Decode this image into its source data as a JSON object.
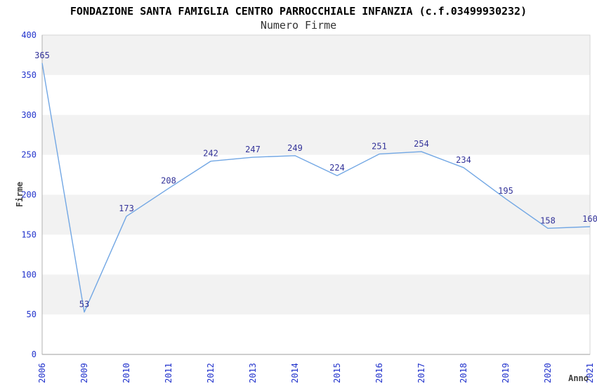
{
  "chart_data": {
    "type": "line",
    "title": "FONDAZIONE SANTA FAMIGLIA CENTRO PARROCCHIALE INFANZIA (c.f.03499930232)",
    "subtitle": "Numero Firme",
    "xlabel": "Anno",
    "ylabel": "Firme",
    "categories": [
      "2006",
      "2009",
      "2010",
      "2011",
      "2012",
      "2013",
      "2014",
      "2015",
      "2016",
      "2017",
      "2018",
      "2019",
      "2020",
      "2021"
    ],
    "values": [
      365,
      53,
      173,
      208,
      242,
      247,
      249,
      224,
      251,
      254,
      234,
      195,
      158,
      160
    ],
    "ylim": [
      0,
      400
    ],
    "ytick_step": 50,
    "yticks": [
      0,
      50,
      100,
      150,
      200,
      250,
      300,
      350,
      400
    ],
    "grid": "alternating-horizontal-bands",
    "legend": "none",
    "data_labels_visible": true,
    "colors": {
      "line": "#72a7e4",
      "band": "#f2f2f2",
      "plot_background": "#ffffff",
      "border": "#d6d6d6",
      "axis_line": "#b0b0b0",
      "tick_label": "#2233cc",
      "data_label": "#333399",
      "axis_title": "#404040",
      "title": "#000000",
      "subtitle": "#333333"
    }
  }
}
